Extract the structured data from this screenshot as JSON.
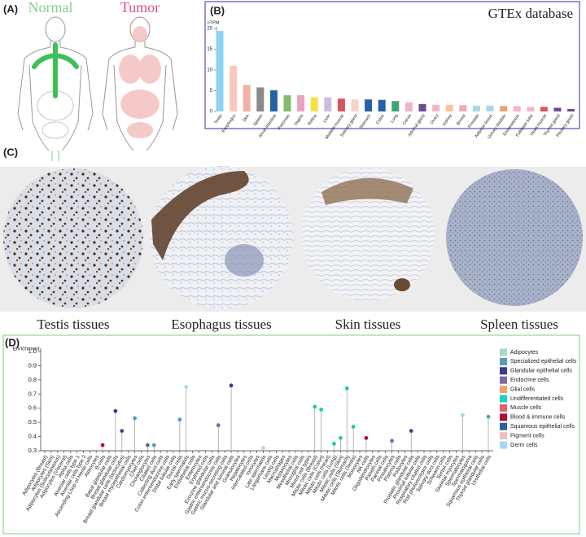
{
  "panels": {
    "a": {
      "label": "(A)",
      "normal": "Normal",
      "tumor": "Tumor"
    },
    "c": {
      "label": "(C)",
      "captions": [
        "Testis tissues",
        "Esophagus tissues",
        "Skin tissues",
        "Spleen tissues"
      ]
    }
  },
  "chart_data": [
    {
      "type": "bar",
      "panel_label": "(B)",
      "title": "GTEx database",
      "y_label": "nTPM",
      "categories": [
        "Testis",
        "Esophagus",
        "Skin",
        "Spleen",
        "Small intestine",
        "Pancreas",
        "Vagina",
        "Retina",
        "Liver",
        "Skeletal muscle",
        "Salivary gland",
        "Stomach",
        "Colon",
        "Lung",
        "Cervix",
        "Adrenal gland",
        "Ovary",
        "Kidney",
        "Breast",
        "Prostate",
        "Adipose tissue",
        "Urinary bladder",
        "Endometrium",
        "Fallopian tube",
        "Heart muscle",
        "Thyroid gland",
        "Pituitary gland"
      ],
      "values": [
        19.4,
        11.0,
        6.4,
        5.8,
        5.1,
        3.9,
        3.9,
        3.4,
        3.4,
        3.1,
        2.9,
        2.9,
        2.8,
        2.5,
        2.2,
        1.8,
        1.6,
        1.6,
        1.5,
        1.4,
        1.4,
        1.3,
        1.3,
        1.1,
        1.1,
        0.9,
        0.6
      ],
      "colors": [
        "#8ed3f0",
        "#f9c9c0",
        "#f2b1a3",
        "#8a8a8a",
        "#2461a8",
        "#86b870",
        "#e8a2c2",
        "#f2e246",
        "#cbbde2",
        "#d9545f",
        "#f6d2ca",
        "#2461a8",
        "#2461a8",
        "#3fa27a",
        "#f2b5c8",
        "#6a4c93",
        "#f2b5c8",
        "#f3c4a0",
        "#f1a8b8",
        "#a8d8e8",
        "#a8d8e8",
        "#f3a070",
        "#f2b5c8",
        "#f2b5c8",
        "#d9545f",
        "#6a4c93",
        "#6a4c93"
      ],
      "ylim": [
        0,
        20
      ],
      "yticks": [
        0,
        5,
        10,
        15,
        20
      ]
    },
    {
      "type": "lollipop",
      "panel_label": "(D)",
      "y_label": "Enrichment",
      "categories": [
        "Adipocytes (Breast)",
        "Adipocytes (Skin)",
        "Adipocytes (Subcutaneous)",
        "Adipocytes (Visceral)",
        "Alpha cells",
        "Alveolar cells type 1",
        "Alveolar cells type 2",
        "Ascending Loop of Henle cells",
        "Astrocytes",
        "B-cells",
        "Basal glandular cells",
        "Breast glandular cells",
        "Breast glandular cells (lactocytes)",
        "Breast myoepithelial cells",
        "Cardiomyocytes",
        "Chief cells",
        "Cholangiocytes",
        "Ciliated cells",
        "Collecting duct cells",
        "Colon enteroendocrine cells",
        "Distal tubular cells",
        "Ductal cells",
        "Early spermatids",
        "Endothelial cells",
        "Enterocytes",
        "Erythroid cells",
        "Exocrine glandular cells",
        "Gastric enteroendocrine cells",
        "Gastric mucus-secreting cells",
        "Glandular and luminal cells",
        "Granulocytes",
        "Hepatocytes",
        "Intercalated cells",
        "Ionocytes",
        "Late spermatids",
        "Langerhans cells",
        "Leydig cells",
        "Macrophages",
        "Melanocytes",
        "Mesothelial cells",
        "Microglial cells",
        "Mixed cell types",
        "Mitotic cells (Breast)",
        "Mitotic cells (Colon)",
        "Mitotic cells (Heart)",
        "Mitotic cells (Lung)",
        "Mitotic cells (Skin)",
        "Mitotic cells (Stomach)",
        "Mitotic cells (Testis)",
        "Monocytes",
        "NK-cells",
        "Oligodendrocytes",
        "Paneth cells",
        "Parietal cells",
        "Pinealocytes",
        "Plasma cells",
        "Podocytes",
        "Prostatic glandular cells",
        "Proximal tubular cells",
        "Respiratory ciliated cells",
        "Rod photoreceptor cells",
        "Salivary duct cells",
        "Schwann cells",
        "Sertoli cells",
        "Skeletal myocytes",
        "Spermatocytes",
        "Spermatogonia",
        "Squamous epithelial cells",
        "Thyroid glandular cells",
        "Urothelial cells"
      ],
      "values": [
        null,
        null,
        null,
        null,
        null,
        null,
        null,
        null,
        null,
        0.34,
        null,
        0.58,
        0.44,
        null,
        0.53,
        null,
        0.34,
        0.34,
        null,
        null,
        null,
        0.52,
        0.75,
        null,
        null,
        null,
        null,
        0.48,
        null,
        0.76,
        null,
        null,
        null,
        null,
        0.32,
        null,
        null,
        null,
        null,
        null,
        null,
        null,
        0.61,
        0.59,
        null,
        0.35,
        0.39,
        0.74,
        0.47,
        null,
        0.39,
        null,
        null,
        null,
        0.37,
        null,
        null,
        0.44,
        null,
        null,
        null,
        null,
        null,
        null,
        null,
        0.55,
        null,
        null,
        null,
        0.54
      ],
      "colors": [
        null,
        null,
        null,
        null,
        null,
        null,
        null,
        null,
        null,
        "#b01030",
        null,
        "#3a3a8a",
        "#4a3f8a",
        null,
        "#5a9ab8",
        null,
        "#6a5aa0",
        "#5a9ab8",
        null,
        null,
        null,
        "#5a9ab8",
        "#a0d8f0",
        null,
        null,
        null,
        null,
        "#7a6aa8",
        null,
        "#3a3a8a",
        null,
        null,
        null,
        null,
        "#a0d8f0",
        null,
        null,
        null,
        null,
        null,
        null,
        null,
        "#20c8b0",
        "#20c8b0",
        null,
        "#20c8b0",
        "#20c8b0",
        "#20c8b0",
        "#20c8b0",
        null,
        "#b01030",
        null,
        null,
        null,
        "#7a6aa8",
        null,
        null,
        "#4a3f8a",
        null,
        null,
        null,
        null,
        null,
        null,
        null,
        "#a0d8f0",
        null,
        null,
        null,
        "#5a9ab8"
      ],
      "legend": [
        {
          "name": "Adipocytes",
          "color": "#a8d8c8"
        },
        {
          "name": "Specialized epithelial cells",
          "color": "#5a9ab8"
        },
        {
          "name": "Glandular epithelial cells",
          "color": "#3a3a8a"
        },
        {
          "name": "Endocrine cells",
          "color": "#7a6aa8"
        },
        {
          "name": "Glial cells",
          "color": "#f0a070"
        },
        {
          "name": "Undifferentiated cells",
          "color": "#20d0c0"
        },
        {
          "name": "Muscle cells",
          "color": "#e06070"
        },
        {
          "name": "Blood & immune cells",
          "color": "#b01030"
        },
        {
          "name": "Squamous epithelial cells",
          "color": "#2a60a0"
        },
        {
          "name": "Pigment cells",
          "color": "#f0c0c0"
        },
        {
          "name": "Germ cells",
          "color": "#a0d8f0"
        }
      ],
      "ylim": [
        0.3,
        1.0
      ],
      "yticks": [
        0.3,
        0.4,
        0.5,
        0.6,
        0.7,
        0.8,
        0.9,
        {
          "value": 1.0,
          "label": "1.0"
        }
      ]
    }
  ]
}
